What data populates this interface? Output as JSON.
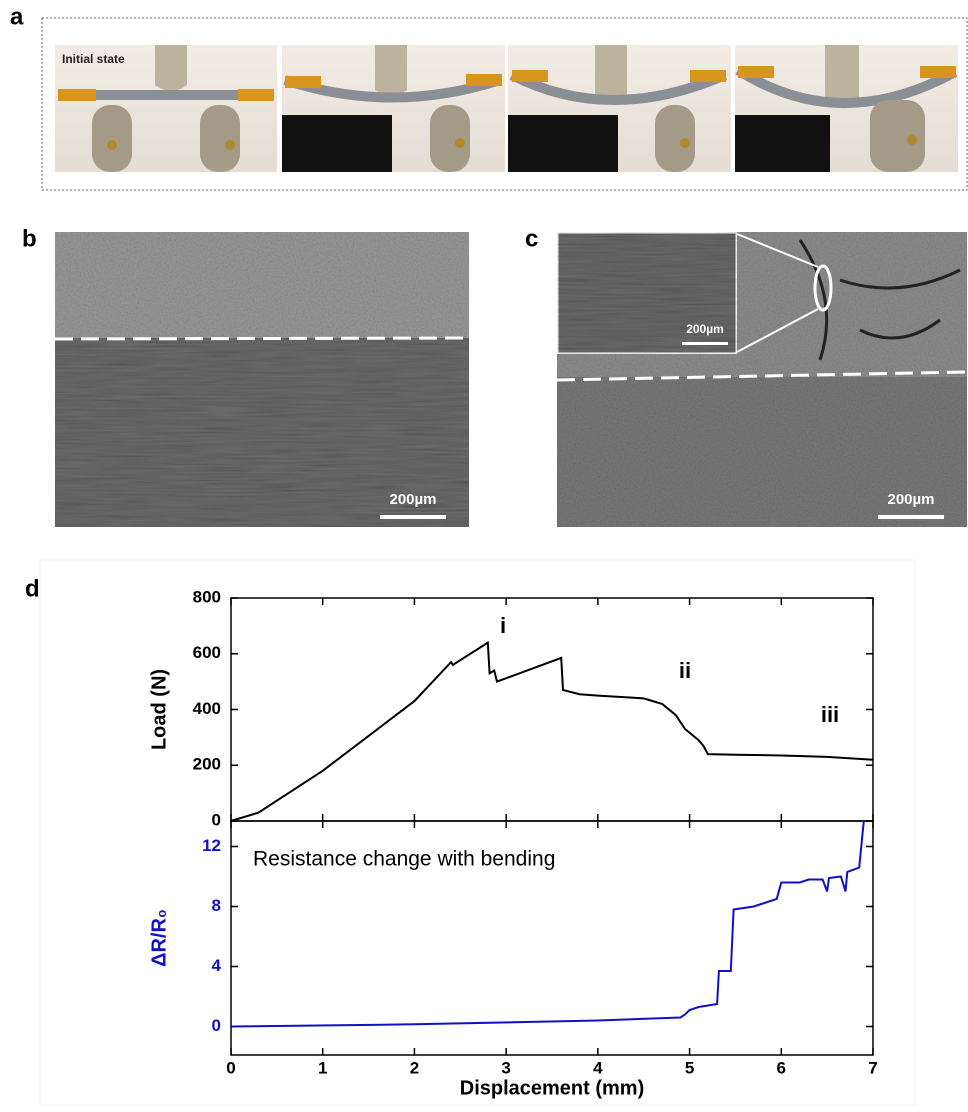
{
  "panels": {
    "a": {
      "label": "a",
      "caption": "Initial state"
    },
    "b": {
      "label": "b",
      "scale_bar": "200µm"
    },
    "c": {
      "label": "c",
      "scale_bar": "200µm",
      "inset_scale_bar": "200µm"
    },
    "d": {
      "label": "d"
    }
  },
  "chart_data": [
    {
      "type": "line",
      "ylabel": "Load (N)",
      "annotations": [
        "i",
        "ii",
        "iii"
      ],
      "xlim": [
        0,
        7
      ],
      "xticks": [
        0,
        1,
        2,
        3,
        4,
        5,
        6,
        7
      ],
      "ylim": [
        0,
        800
      ],
      "yticks": [
        0,
        200,
        400,
        600,
        800
      ],
      "color": "#000000",
      "ytick_color": "#000000",
      "x": [
        0,
        0.3,
        1,
        2,
        2.4,
        2.42,
        2.8,
        2.82,
        2.87,
        2.9,
        3.6,
        3.62,
        3.8,
        4,
        4.5,
        4.7,
        4.85,
        4.95,
        5.1,
        5.15,
        5.2,
        5.5,
        6,
        6.5,
        7
      ],
      "values": [
        0,
        30,
        180,
        430,
        570,
        560,
        640,
        530,
        540,
        500,
        585,
        470,
        455,
        450,
        440,
        420,
        380,
        330,
        290,
        270,
        240,
        238,
        235,
        230,
        220
      ]
    },
    {
      "type": "line",
      "ylabel": "ΔR/R₀",
      "xlabel": "Displacement (mm)",
      "annotations": [
        "Resistance change with bending"
      ],
      "xlim": [
        0,
        7
      ],
      "xticks": [
        0,
        1,
        2,
        3,
        4,
        5,
        6,
        7
      ],
      "ylim": [
        -1.9,
        13.7
      ],
      "yticks": [
        0,
        4,
        8,
        12
      ],
      "color": "#1010c8",
      "ytick_color": "#1010c8",
      "x": [
        0,
        2,
        4,
        4.9,
        4.95,
        5.0,
        5.1,
        5.3,
        5.32,
        5.45,
        5.48,
        5.7,
        5.8,
        5.95,
        6.0,
        6.2,
        6.3,
        6.45,
        6.5,
        6.52,
        6.65,
        6.7,
        6.72,
        6.85,
        6.9
      ],
      "values": [
        0,
        0.15,
        0.4,
        0.6,
        0.8,
        1.1,
        1.3,
        1.5,
        3.7,
        3.7,
        7.8,
        8,
        8.2,
        8.5,
        9.6,
        9.6,
        9.8,
        9.8,
        9.0,
        9.9,
        10,
        9.0,
        10.3,
        10.6,
        13.7
      ]
    }
  ]
}
